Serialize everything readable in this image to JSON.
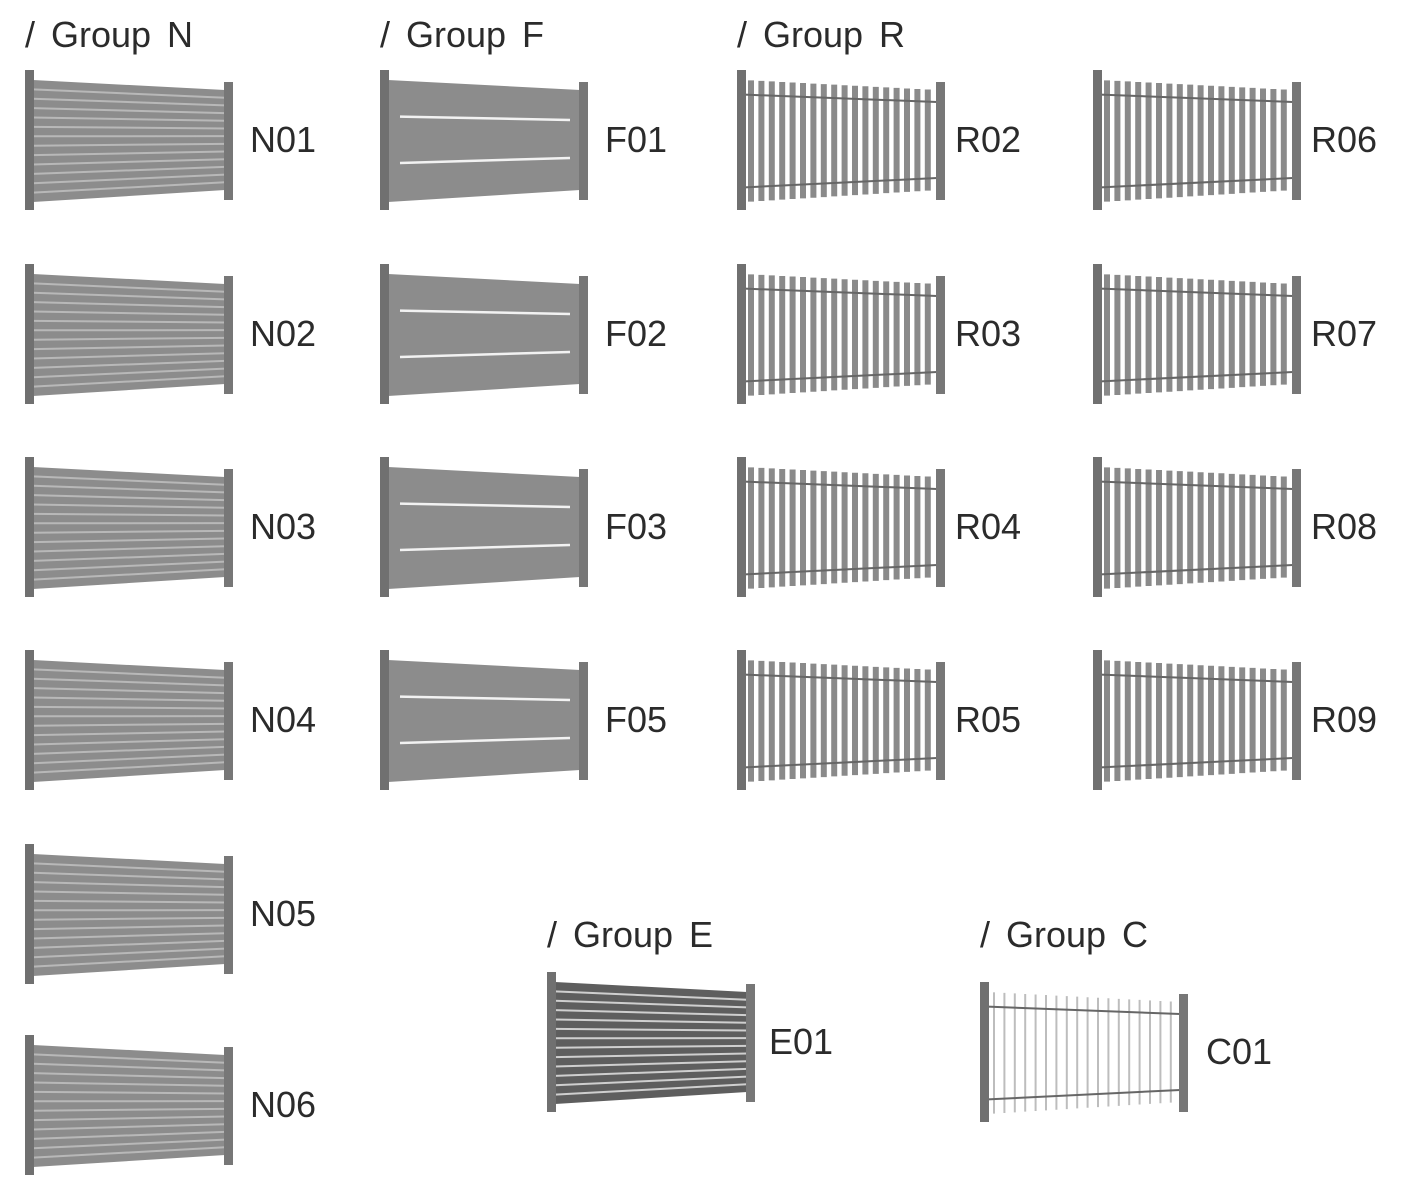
{
  "groups": [
    {
      "title": "/ Group N",
      "items": [
        "N01",
        "N02",
        "N03",
        "N04",
        "N05",
        "N06"
      ]
    },
    {
      "title": "/ Group F",
      "items": [
        "F01",
        "F02",
        "F03",
        "F05"
      ]
    },
    {
      "title": "/ Group R",
      "items": [
        "R02",
        "R03",
        "R04",
        "R05",
        "R06",
        "R07",
        "R08",
        "R09"
      ]
    },
    {
      "title": "/ Group E",
      "items": [
        "E01"
      ]
    },
    {
      "title": "/ Group C",
      "items": [
        "C01"
      ]
    }
  ]
}
